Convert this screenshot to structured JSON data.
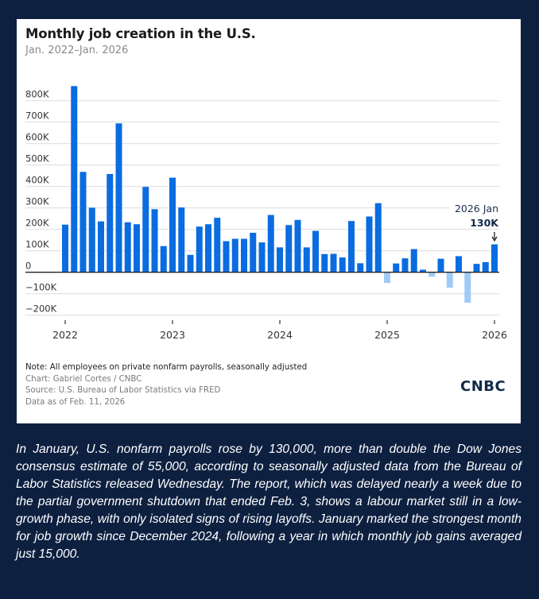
{
  "chart_data": {
    "type": "bar",
    "title": "Monthly job creation in the U.S.",
    "subtitle": "Jan. 2022–Jan. 2026",
    "xlabel": "",
    "ylabel": "",
    "ylim": [
      -200,
      800
    ],
    "y_unit": "thousands of jobs",
    "y_ticks": [
      {
        "value": 800,
        "label": "800K"
      },
      {
        "value": 700,
        "label": "700K"
      },
      {
        "value": 600,
        "label": "600K"
      },
      {
        "value": 500,
        "label": "500K"
      },
      {
        "value": 400,
        "label": "400K"
      },
      {
        "value": 300,
        "label": "300K"
      },
      {
        "value": 200,
        "label": "200K"
      },
      {
        "value": 100,
        "label": "100K"
      },
      {
        "value": 0,
        "label": "0"
      },
      {
        "value": -100,
        "label": "−100K"
      },
      {
        "value": -200,
        "label": "−200K"
      }
    ],
    "x_ticks": [
      {
        "index": 0,
        "label": "2022"
      },
      {
        "index": 12,
        "label": "2023"
      },
      {
        "index": 24,
        "label": "2024"
      },
      {
        "index": 36,
        "label": "2025"
      },
      {
        "index": 48,
        "label": "2026"
      }
    ],
    "grid": true,
    "legend": "none",
    "categories": [
      "2022-01",
      "2022-02",
      "2022-03",
      "2022-04",
      "2022-05",
      "2022-06",
      "2022-07",
      "2022-08",
      "2022-09",
      "2022-10",
      "2022-11",
      "2022-12",
      "2023-01",
      "2023-02",
      "2023-03",
      "2023-04",
      "2023-05",
      "2023-06",
      "2023-07",
      "2023-08",
      "2023-09",
      "2023-10",
      "2023-11",
      "2023-12",
      "2024-01",
      "2024-02",
      "2024-03",
      "2024-04",
      "2024-05",
      "2024-06",
      "2024-07",
      "2024-08",
      "2024-09",
      "2024-10",
      "2024-11",
      "2024-12",
      "2025-01",
      "2025-02",
      "2025-03",
      "2025-04",
      "2025-05",
      "2025-06",
      "2025-07",
      "2025-08",
      "2025-09",
      "2025-10",
      "2025-11",
      "2025-12",
      "2026-01"
    ],
    "values": [
      222,
      868,
      468,
      301,
      237,
      458,
      694,
      233,
      224,
      398,
      294,
      122,
      441,
      302,
      81,
      213,
      224,
      254,
      145,
      156,
      156,
      184,
      139,
      267,
      116,
      220,
      244,
      116,
      193,
      85,
      86,
      69,
      239,
      42,
      260,
      322,
      -50,
      41,
      65,
      108,
      12,
      -21,
      63,
      -72,
      75,
      -142,
      39,
      47,
      130
    ],
    "colors": {
      "positive": "#0a6ce0",
      "negative": "#9ecbf6",
      "grid": "#dcdcdc",
      "axis": "#222222"
    },
    "annotation": {
      "index": 48,
      "label": "2026 Jan",
      "value_label": "130K",
      "arrow": "down-arrow"
    }
  },
  "footer": {
    "note": "Note: All employees on private nonfarm payrolls, seasonally adjusted",
    "chart_credit": "Chart: Gabriel Cortes / CNBC",
    "source": "Source: U.S. Bureau of Labor Statistics via FRED",
    "data_as_of": "Data as of Feb. 11, 2026"
  },
  "logo": "CNBC",
  "caption": "In January, U.S. nonfarm payrolls rose by 130,000, more than double the Dow Jones consensus estimate of 55,000, according to seasonally adjusted data from the Bureau of Labor Statistics released Wednesday. The report, which was delayed nearly a week due to the partial government shutdown that ended Feb. 3, shows a labour market still in a low-growth phase, with only isolated signs of rising layoffs. January marked the strongest month for job growth since December 2024, following a year in which monthly job gains averaged just 15,000."
}
